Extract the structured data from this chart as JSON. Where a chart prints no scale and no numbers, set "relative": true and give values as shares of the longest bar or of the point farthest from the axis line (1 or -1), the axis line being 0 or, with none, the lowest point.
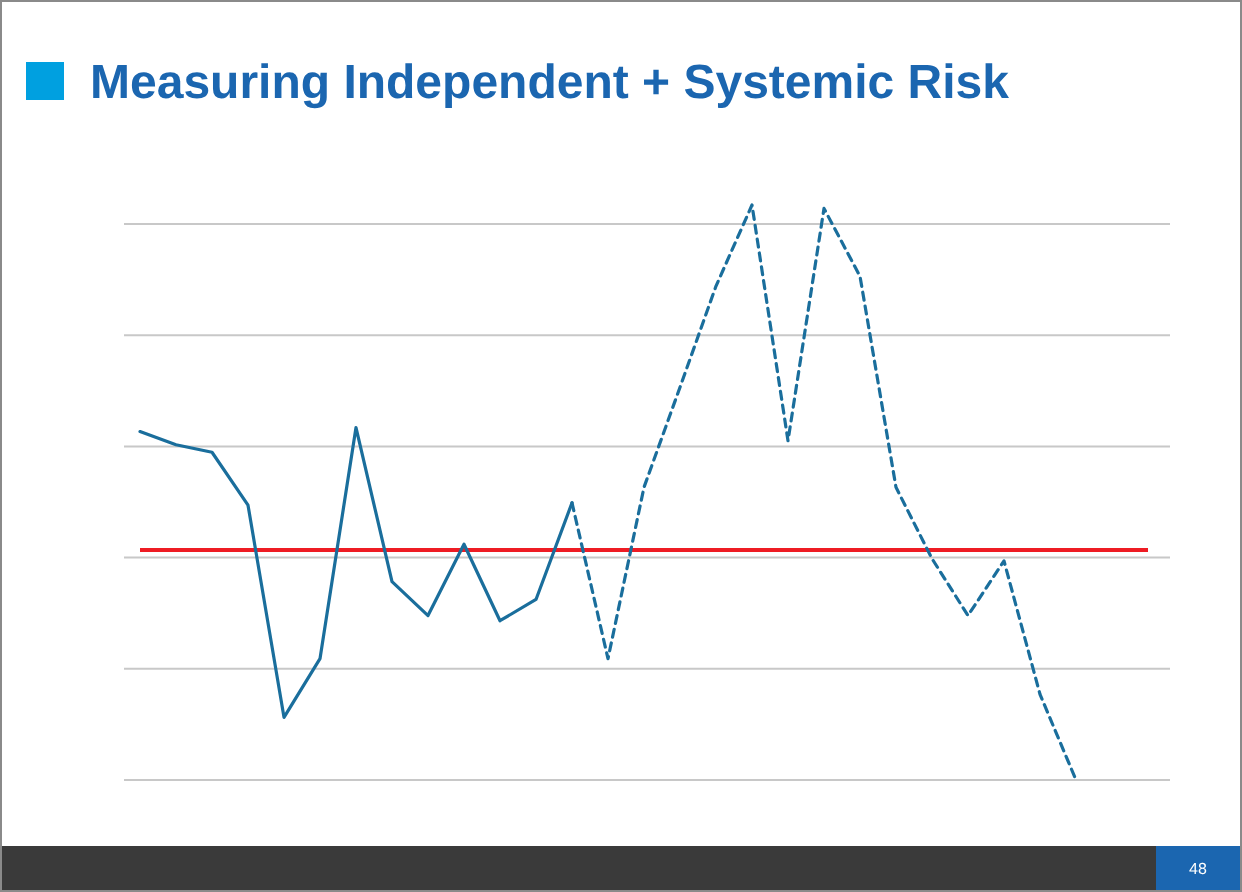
{
  "chart_data": {
    "type": "line",
    "title": "Measuring Independent + Systemic Risk",
    "relative": true,
    "grid": "y",
    "categories": [
      null,
      null,
      null,
      null,
      null,
      null,
      null,
      null,
      null,
      null,
      null,
      null,
      null,
      null,
      null,
      null,
      null,
      null,
      null,
      null,
      null,
      null,
      null,
      null,
      null,
      null,
      null,
      null,
      null
    ],
    "series": [
      {
        "color": "#1a6e9c",
        "line_style": "solid",
        "values": [
          0.606,
          0.583,
          0.57,
          0.478,
          0.109,
          0.211,
          0.613,
          0.345,
          0.286,
          0.41,
          0.277,
          0.314,
          0.482,
          null,
          null,
          null,
          null,
          null,
          null,
          null,
          null,
          null,
          null,
          null,
          null,
          null,
          null,
          null,
          null
        ]
      },
      {
        "color": "#1a6e9c",
        "line_style": "dashed",
        "values": [
          null,
          null,
          null,
          null,
          null,
          null,
          null,
          null,
          null,
          null,
          null,
          null,
          0.482,
          0.211,
          0.509,
          0.683,
          0.859,
          1,
          0.59,
          0.994,
          0.876,
          0.509,
          0.385,
          0.286,
          0.381,
          0.149,
          0,
          null,
          null
        ]
      }
    ],
    "ref_lines": [
      {
        "axis": "y",
        "value": 0.4,
        "color": "#ee1c24"
      }
    ],
    "annotations": [
      "48"
    ]
  }
}
